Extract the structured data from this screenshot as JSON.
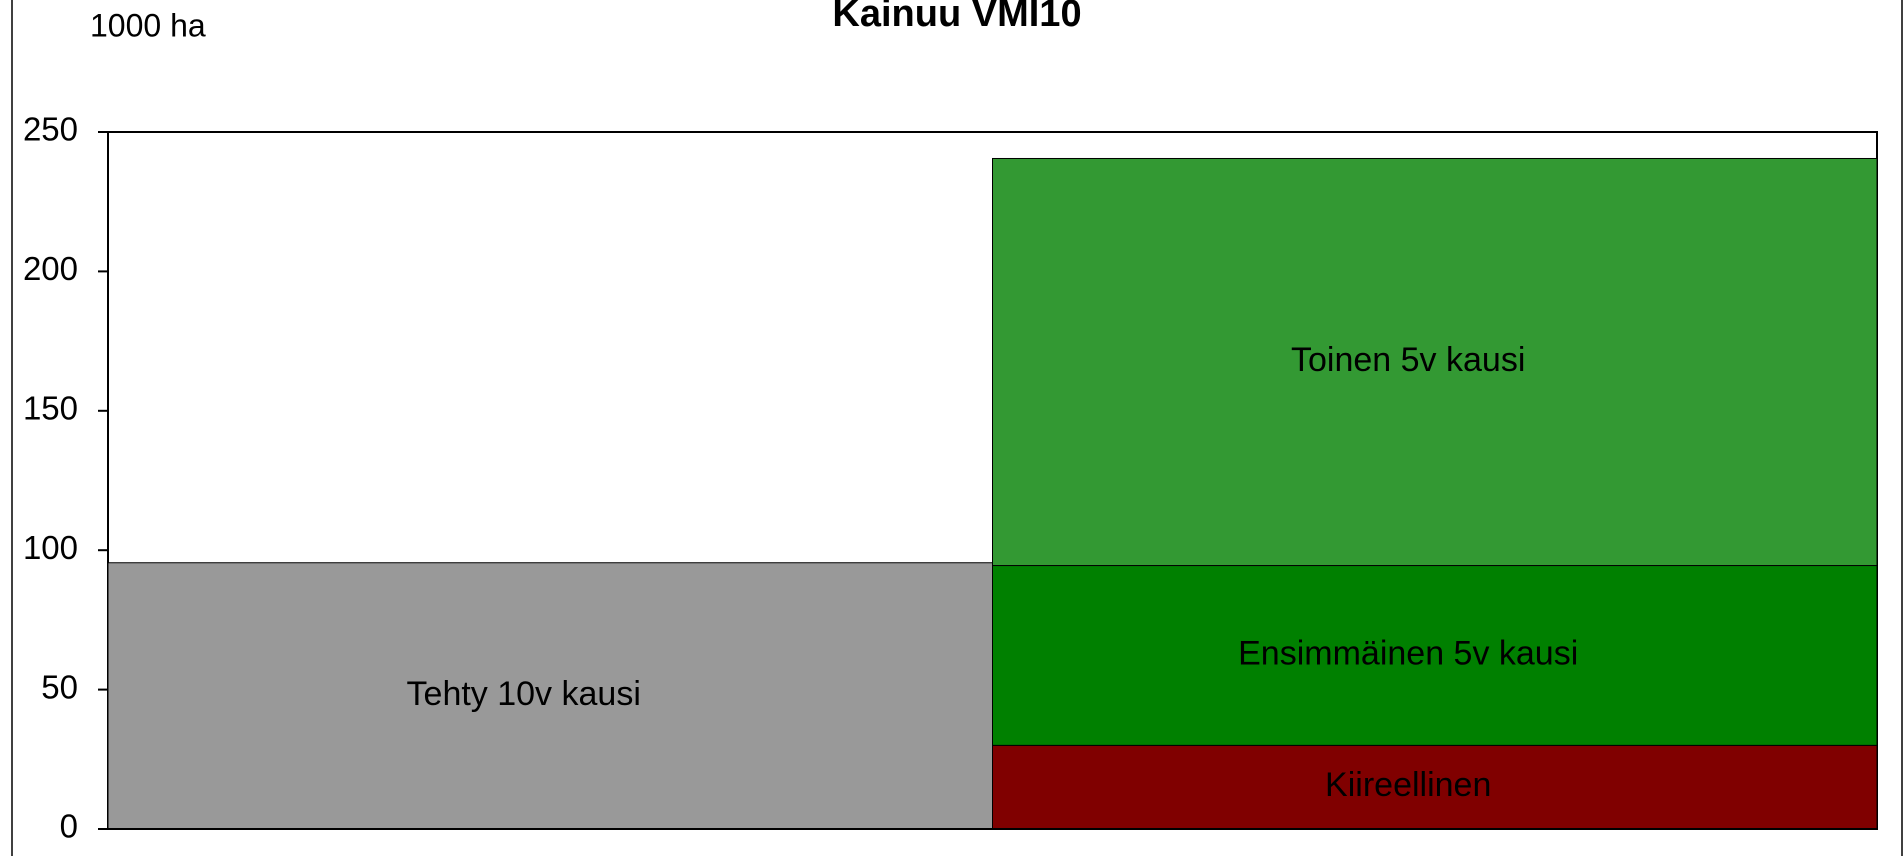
{
  "chart_data": {
    "type": "stacked_bar",
    "title": "Kainuu VMI10",
    "y_label": "1000 ha",
    "categories": [
      null,
      null
    ],
    "series": [
      {
        "name": "Tehty 10v kausi",
        "color": "#999999",
        "values": [
          95.5,
          null
        ]
      },
      {
        "name": "Kiireellinen",
        "color": "#800000",
        "values": [
          null,
          30
        ]
      },
      {
        "name": "Ensimmäinen 5v kausi",
        "color": "#008000",
        "values": [
          null,
          64.5
        ]
      },
      {
        "name": "Toinen 5v kausi",
        "color": "#339933",
        "values": [
          null,
          146
        ]
      }
    ],
    "ylim": [
      0,
      250
    ],
    "yticks": [
      0,
      50,
      100,
      150,
      200,
      250
    ]
  }
}
